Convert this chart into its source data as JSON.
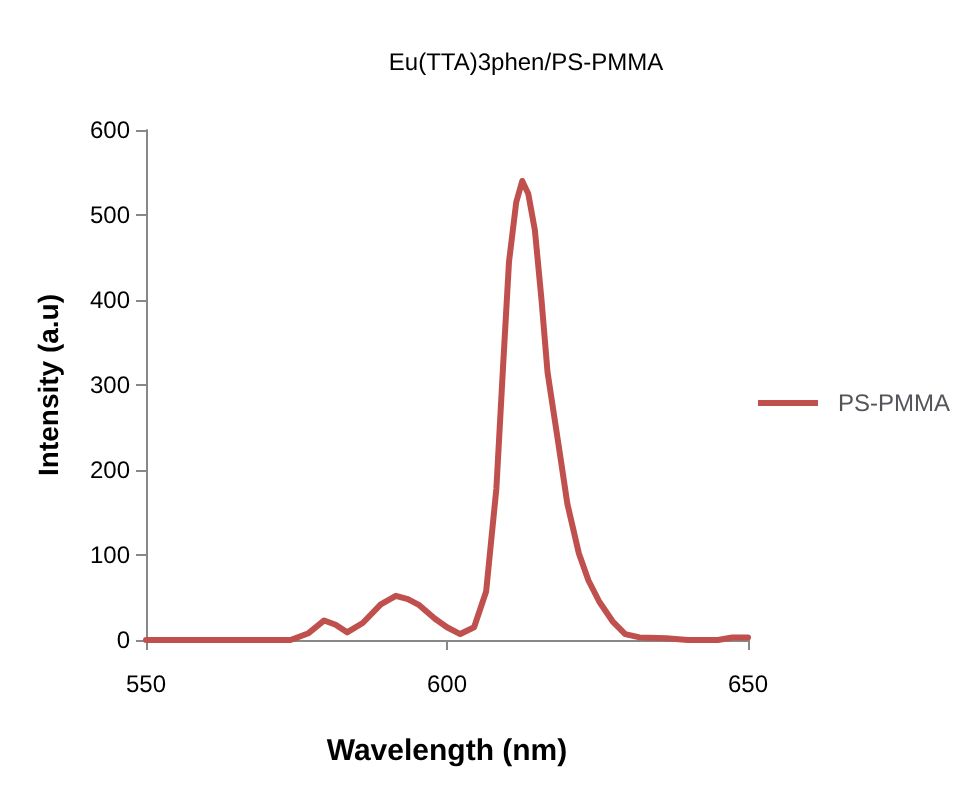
{
  "chart_data": {
    "type": "line",
    "title": "Eu(TTA)3phen/PS-PMMA",
    "xlabel": "Wavelength (nm)",
    "ylabel": "Intensity (a.u)",
    "x": [
      550,
      560,
      570,
      574,
      577,
      579.6,
      581.5,
      583.4,
      586,
      589,
      591.5,
      593.5,
      595.4,
      598,
      600,
      602.2,
      604.5,
      606.5,
      608.2,
      609.3,
      610.3,
      611.5,
      612.5,
      613.5,
      614.6,
      615.7,
      616.7,
      618.5,
      620,
      621.9,
      623.5,
      625.3,
      627.5,
      629.6,
      632,
      636.4,
      640,
      645,
      647.4,
      650
    ],
    "series": [
      {
        "name": "PS-PMMA",
        "color": "#c0504d",
        "values": [
          0,
          0,
          0,
          0,
          8,
          23,
          18,
          9,
          20,
          42,
          52,
          48,
          41,
          25,
          15,
          7,
          15,
          57,
          178,
          320,
          445,
          515,
          540,
          525,
          482,
          400,
          315,
          231,
          160,
          102,
          70,
          45,
          22,
          7,
          3,
          2,
          0,
          0,
          3,
          3
        ]
      }
    ],
    "xlim": [
      550,
      650
    ],
    "xticks": [
      550,
      600,
      650
    ],
    "ylim": [
      0,
      600
    ],
    "yticks": [
      0,
      100,
      200,
      300,
      400,
      500,
      600
    ],
    "grid": false,
    "legend": "right",
    "marker": "none",
    "line_style": "solid"
  }
}
